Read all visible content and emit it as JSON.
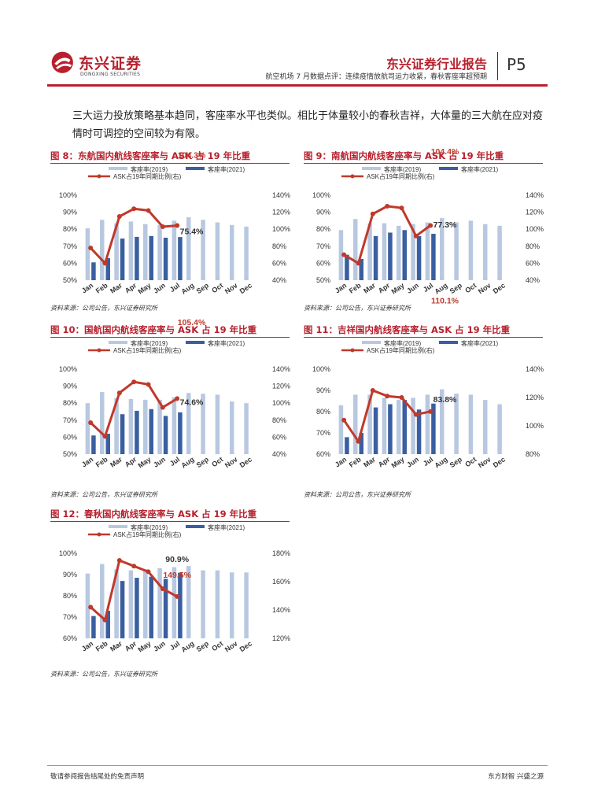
{
  "header": {
    "logo_cn": "东兴证券",
    "logo_en": "DONGXING SECURITIES",
    "brand": "东兴证券行业报告",
    "subtitle": "航空机场 7 月数据点评：连续疫情放航司运力收紧，春秋客座率超预期",
    "page": "P5"
  },
  "paragraph": "三大运力投放策略基本趋同，客座率水平也类似。相比于体量较小的春秋吉祥，大体量的三大航在应对疫情时可调控的空间较为有限。",
  "footer": {
    "left": "敬请参阅报告结尾处的免责声明",
    "right": "东方财智 兴盛之源"
  },
  "colors": {
    "brand_red": "#b8202d",
    "bar_2019": "#b8c8e0",
    "bar_2021": "#3a5fa0",
    "line": "#c0392b"
  },
  "chart_data": [
    {
      "type": "bar",
      "title": "图 8：东航国内航线客座率与 ASK 占 19 年比重",
      "source": "资料来源：公司公告，东兴证券研究所",
      "categories": [
        "Jan",
        "Feb",
        "Mar",
        "Apr",
        "May",
        "Jun",
        "Jul",
        "Aug",
        "Sep",
        "Oct",
        "Nov",
        "Dec"
      ],
      "legend": [
        "客座率(2019)",
        "客座率(2021)",
        "ASK占19年同期比例(右)"
      ],
      "ylim": [
        50,
        100
      ],
      "y_ticks": [
        "50%",
        "60%",
        "70%",
        "80%",
        "90%",
        "100%"
      ],
      "y2lim": [
        40,
        140
      ],
      "y2_ticks": [
        "40%",
        "60%",
        "80%",
        "100%",
        "120%",
        "140%"
      ],
      "series": [
        {
          "name": "客座率(2019)",
          "axis": "left",
          "values": [
            80.5,
            85.5,
            83.5,
            84.5,
            83,
            82.5,
            85,
            87,
            85.5,
            84,
            82.5,
            81.5
          ]
        },
        {
          "name": "客座率(2021)",
          "axis": "left",
          "values": [
            60.5,
            63,
            74.5,
            75.5,
            76,
            75,
            75.4,
            null,
            null,
            null,
            null,
            null
          ]
        },
        {
          "name": "ASK占19年同期比例(右)",
          "axis": "right",
          "values": [
            78,
            60,
            115,
            124,
            122,
            103,
            104.3,
            null,
            null,
            null,
            null,
            null
          ]
        }
      ],
      "annotations": [
        {
          "text": "104.3%",
          "color": "#c0392b",
          "x": "Aug",
          "y": 122
        },
        {
          "text": "75.4%",
          "color": "#333",
          "x": "Aug",
          "y": 77
        }
      ]
    },
    {
      "type": "bar",
      "title": "图 9：南航国内航线客座率与 ASK 占 19 年比重",
      "source": "资料来源：公司公告，东兴证券研究所",
      "categories": [
        "Jan",
        "Feb",
        "Mar",
        "Apr",
        "May",
        "Jun",
        "Jul",
        "Aug",
        "Sep",
        "Oct",
        "Nov",
        "Dec"
      ],
      "legend": [
        "客座率(2019)",
        "客座率(2021)",
        "ASK占19年同期比例(右)"
      ],
      "ylim": [
        50,
        100
      ],
      "y_ticks": [
        "50%",
        "60%",
        "70%",
        "80%",
        "90%",
        "100%"
      ],
      "y2lim": [
        40,
        140
      ],
      "y2_ticks": [
        "40%",
        "60%",
        "80%",
        "100%",
        "120%",
        "140%"
      ],
      "series": [
        {
          "name": "客座率(2019)",
          "axis": "left",
          "values": [
            79.5,
            86,
            83.5,
            83.5,
            82,
            83,
            84,
            86.5,
            84,
            85,
            83,
            82
          ]
        },
        {
          "name": "客座率(2021)",
          "axis": "left",
          "values": [
            65,
            62.5,
            76,
            78,
            79.5,
            76,
            77.3,
            null,
            null,
            null,
            null,
            null
          ]
        },
        {
          "name": "ASK占19年同期比例(右)",
          "axis": "right",
          "values": [
            70,
            60,
            118,
            127,
            125,
            92,
            104.4,
            null,
            null,
            null,
            null,
            null
          ]
        }
      ],
      "annotations": [
        {
          "text": "104.4%",
          "color": "#c0392b",
          "x": "Aug",
          "y": 124
        },
        {
          "text": "77.3%",
          "color": "#333",
          "x": "Aug",
          "y": 81
        }
      ]
    },
    {
      "type": "bar",
      "title": "图 10：国航国内航线客座率与 ASK 占 19 年比重",
      "source": "资料来源：公司公告，东兴证券研究所",
      "categories": [
        "Jan",
        "Feb",
        "Mar",
        "Apr",
        "May",
        "Jun",
        "Jul",
        "Aug",
        "Sep",
        "Oct",
        "Nov",
        "Dec"
      ],
      "legend": [
        "客座率(2019)",
        "客座率(2021)",
        "ASK占19年同期比例(右)"
      ],
      "ylim": [
        50,
        100
      ],
      "y_ticks": [
        "50%",
        "60%",
        "70%",
        "80%",
        "90%",
        "100%"
      ],
      "y2lim": [
        40,
        140
      ],
      "y2_ticks": [
        "40%",
        "60%",
        "80%",
        "100%",
        "120%",
        "140%"
      ],
      "series": [
        {
          "name": "客座率(2019)",
          "axis": "left",
          "values": [
            80,
            86.5,
            83,
            82.5,
            82,
            82,
            83.5,
            86,
            85.5,
            85,
            81,
            80
          ]
        },
        {
          "name": "客座率(2021)",
          "axis": "left",
          "values": [
            61,
            62,
            73.5,
            75.5,
            76.5,
            72.5,
            74.6,
            null,
            null,
            null,
            null,
            null
          ]
        },
        {
          "name": "ASK占19年同期比例(右)",
          "axis": "right",
          "values": [
            77,
            61,
            112,
            125,
            122,
            95,
            105.4,
            null,
            null,
            null,
            null,
            null
          ]
        }
      ],
      "annotations": [
        {
          "text": "105.4%",
          "color": "#c0392b",
          "x": "Aug",
          "y": 126
        },
        {
          "text": "74.6%",
          "color": "#333",
          "x": "Aug",
          "y": 79
        }
      ]
    },
    {
      "type": "bar",
      "title": "图 11：吉祥国内航线客座率与 ASK 占 19 年比重",
      "source": "资料来源：公司公告，东兴证券研究所",
      "categories": [
        "Jan",
        "Feb",
        "Mar",
        "Apr",
        "May",
        "Jun",
        "Jul",
        "Aug",
        "Sep",
        "Oct",
        "Nov",
        "Dec"
      ],
      "legend": [
        "客座率(2019)",
        "客座率(2021)",
        "ASK占19年同期比例(右)"
      ],
      "ylim": [
        60,
        100
      ],
      "y_ticks": [
        "60%",
        "70%",
        "80%",
        "90%",
        "100%"
      ],
      "y2lim": [
        80,
        140
      ],
      "y2_ticks": [
        "80%",
        "100%",
        "120%",
        "140%"
      ],
      "series": [
        {
          "name": "客座率(2019)",
          "axis": "left",
          "values": [
            83,
            88,
            88,
            86.5,
            85.5,
            86.5,
            88,
            90.5,
            88.5,
            88,
            85.5,
            83.5
          ]
        },
        {
          "name": "客座率(2021)",
          "axis": "left",
          "values": [
            68,
            70,
            82,
            83.5,
            85.5,
            81,
            83.8,
            null,
            null,
            null,
            null,
            null
          ]
        },
        {
          "name": "ASK占19年同期比例(右)",
          "axis": "right",
          "values": [
            104,
            89,
            125,
            121,
            120,
            108,
            110.1,
            null,
            null,
            null,
            null,
            null
          ]
        }
      ],
      "annotations": [
        {
          "text": "110.1%",
          "color": "#c0392b",
          "x": "Aug",
          "y": 131
        },
        {
          "text": "83.8%",
          "color": "#333",
          "x": "Aug",
          "y": 84.5
        }
      ]
    },
    {
      "type": "bar",
      "title": "图 12：春秋国内航线客座率与 ASK 占 19 年比重",
      "source": "资料来源：公司公告，东兴证券研究所",
      "categories": [
        "Jan",
        "Feb",
        "Mar",
        "Apr",
        "May",
        "Jun",
        "Jul",
        "Aug",
        "Sep",
        "Oct",
        "Nov",
        "Dec"
      ],
      "legend": [
        "客座率(2019)",
        "客座率(2021)",
        "ASK占19年同期比例(右)"
      ],
      "ylim": [
        60,
        100
      ],
      "y_ticks": [
        "60%",
        "70%",
        "80%",
        "90%",
        "100%"
      ],
      "y2lim": [
        120,
        180
      ],
      "y2_ticks": [
        "120%",
        "140%",
        "160%",
        "180%"
      ],
      "series": [
        {
          "name": "客座率(2019)",
          "axis": "left",
          "values": [
            90.5,
            95,
            92.5,
            92,
            92.5,
            93,
            93.5,
            94,
            92,
            92,
            91,
            91
          ]
        },
        {
          "name": "客座率(2021)",
          "axis": "left",
          "values": [
            70.5,
            73,
            87,
            88.5,
            89,
            88,
            90.9,
            null,
            null,
            null,
            null,
            null
          ]
        },
        {
          "name": "ASK占19年同期比例(右)",
          "axis": "right",
          "values": [
            142,
            133,
            175,
            171,
            167,
            155,
            149.5,
            null,
            null,
            null,
            null,
            null
          ]
        }
      ],
      "annotations": [
        {
          "text": "90.9%",
          "color": "#333",
          "x": "Jul",
          "y": 96
        },
        {
          "text": "149.5%",
          "color": "#c0392b",
          "x": "Jul",
          "y": 88.5
        }
      ]
    }
  ]
}
